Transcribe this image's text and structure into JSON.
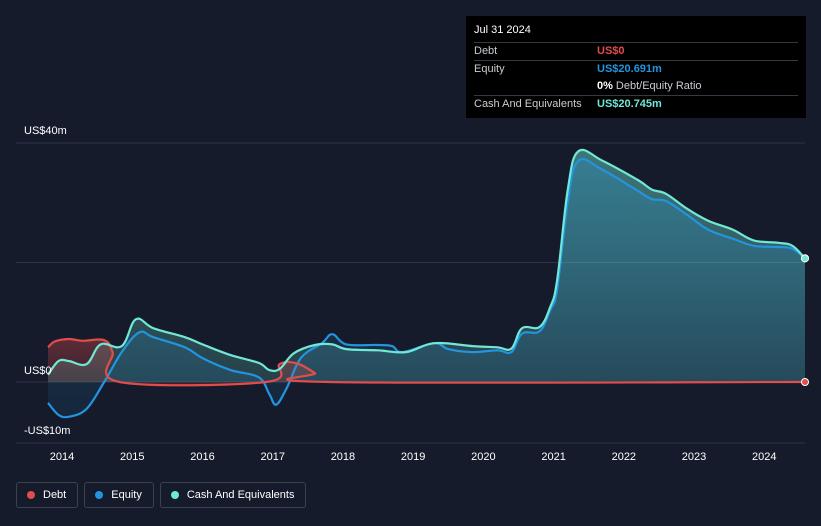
{
  "colors": {
    "background": "#151b2a",
    "debt": "#e24c4c",
    "equity": "#2394df",
    "cash": "#71e7d6",
    "grid": "#2f3645",
    "tooltip_bg": "#000000"
  },
  "tooltip": {
    "date": "Jul 31 2024",
    "debt_label": "Debt",
    "debt_value": "US$0",
    "equity_label": "Equity",
    "equity_value": "US$20.691m",
    "ratio_value": "0%",
    "ratio_label": "Debt/Equity Ratio",
    "cash_label": "Cash And Equivalents",
    "cash_value": "US$20.745m"
  },
  "legend": {
    "debt": "Debt",
    "equity": "Equity",
    "cash": "Cash And Equivalents"
  },
  "chart_data": {
    "type": "area",
    "title": "",
    "xlabel": "",
    "ylabel": "",
    "ylim": [
      -10,
      40
    ],
    "y_ticks": [
      {
        "value": 40,
        "label": "US$40m"
      },
      {
        "value": 0,
        "label": "US$0"
      },
      {
        "value": -10,
        "label": "-US$10m"
      }
    ],
    "y_gridlines": [
      40,
      20,
      0
    ],
    "x_ticks": [
      "2014",
      "2015",
      "2016",
      "2017",
      "2018",
      "2019",
      "2020",
      "2021",
      "2022",
      "2023",
      "2024"
    ],
    "xlim": [
      2013.8,
      2024.58
    ],
    "series": [
      {
        "name": "Debt",
        "key": "debt",
        "points": [
          [
            2013.8,
            5.8
          ],
          [
            2013.9,
            6.8
          ],
          [
            2014.1,
            7.2
          ],
          [
            2014.3,
            6.9
          ],
          [
            2014.6,
            7.0
          ],
          [
            2014.72,
            5.0
          ],
          [
            2014.82,
            0
          ],
          [
            2016.9,
            0
          ],
          [
            2017.1,
            3.0
          ],
          [
            2017.35,
            3.1
          ],
          [
            2017.6,
            1.5
          ],
          [
            2017.8,
            0
          ],
          [
            2024.58,
            0
          ]
        ]
      },
      {
        "name": "Equity",
        "key": "equity",
        "points": [
          [
            2013.8,
            -3.5
          ],
          [
            2013.95,
            -5.5
          ],
          [
            2014.1,
            -5.8
          ],
          [
            2014.35,
            -4.5
          ],
          [
            2014.6,
            0
          ],
          [
            2014.85,
            5.0
          ],
          [
            2015.1,
            8.3
          ],
          [
            2015.3,
            7.5
          ],
          [
            2015.75,
            5.8
          ],
          [
            2016.0,
            4.0
          ],
          [
            2016.4,
            2.0
          ],
          [
            2016.8,
            0.8
          ],
          [
            2016.95,
            -2.0
          ],
          [
            2017.05,
            -3.8
          ],
          [
            2017.2,
            -1.0
          ],
          [
            2017.4,
            4.0
          ],
          [
            2017.7,
            6.5
          ],
          [
            2017.85,
            8.0
          ],
          [
            2018.05,
            6.3
          ],
          [
            2018.5,
            6.2
          ],
          [
            2018.7,
            6.0
          ],
          [
            2018.85,
            5.0
          ],
          [
            2019.3,
            6.5
          ],
          [
            2019.5,
            5.5
          ],
          [
            2019.85,
            5.0
          ],
          [
            2020.2,
            5.3
          ],
          [
            2020.4,
            5.0
          ],
          [
            2020.55,
            8.1
          ],
          [
            2020.8,
            8.5
          ],
          [
            2020.95,
            12.0
          ],
          [
            2021.05,
            15.5
          ],
          [
            2021.2,
            30.0
          ],
          [
            2021.35,
            37.0
          ],
          [
            2021.7,
            35.5
          ],
          [
            2022.2,
            32.0
          ],
          [
            2022.4,
            30.6
          ],
          [
            2022.6,
            30.3
          ],
          [
            2022.9,
            28.0
          ],
          [
            2023.2,
            25.5
          ],
          [
            2023.55,
            24.0
          ],
          [
            2023.85,
            22.8
          ],
          [
            2024.2,
            22.6
          ],
          [
            2024.4,
            22.3
          ],
          [
            2024.58,
            20.7
          ]
        ]
      },
      {
        "name": "Cash And Equivalents",
        "key": "cash",
        "points": [
          [
            2013.8,
            1.2
          ],
          [
            2013.95,
            3.5
          ],
          [
            2014.1,
            3.5
          ],
          [
            2014.35,
            3.0
          ],
          [
            2014.55,
            6.3
          ],
          [
            2014.85,
            6.0
          ],
          [
            2015.05,
            10.5
          ],
          [
            2015.3,
            9.0
          ],
          [
            2015.75,
            7.5
          ],
          [
            2016.0,
            6.3
          ],
          [
            2016.4,
            4.5
          ],
          [
            2016.8,
            3.2
          ],
          [
            2016.95,
            2.0
          ],
          [
            2017.1,
            2.2
          ],
          [
            2017.3,
            4.8
          ],
          [
            2017.6,
            6.2
          ],
          [
            2017.85,
            6.3
          ],
          [
            2018.05,
            5.5
          ],
          [
            2018.5,
            5.3
          ],
          [
            2018.9,
            5.0
          ],
          [
            2019.3,
            6.5
          ],
          [
            2019.85,
            6.0
          ],
          [
            2020.2,
            5.8
          ],
          [
            2020.4,
            5.6
          ],
          [
            2020.55,
            9.0
          ],
          [
            2020.8,
            9.2
          ],
          [
            2020.95,
            12.5
          ],
          [
            2021.05,
            17.0
          ],
          [
            2021.2,
            32.0
          ],
          [
            2021.35,
            38.6
          ],
          [
            2021.7,
            37.0
          ],
          [
            2022.2,
            33.8
          ],
          [
            2022.4,
            32.2
          ],
          [
            2022.6,
            31.5
          ],
          [
            2022.9,
            29.0
          ],
          [
            2023.2,
            27.0
          ],
          [
            2023.55,
            25.5
          ],
          [
            2023.85,
            23.7
          ],
          [
            2024.2,
            23.3
          ],
          [
            2024.4,
            22.8
          ],
          [
            2024.58,
            20.7
          ]
        ]
      }
    ],
    "legend_position": "bottom-left",
    "grid": true
  }
}
